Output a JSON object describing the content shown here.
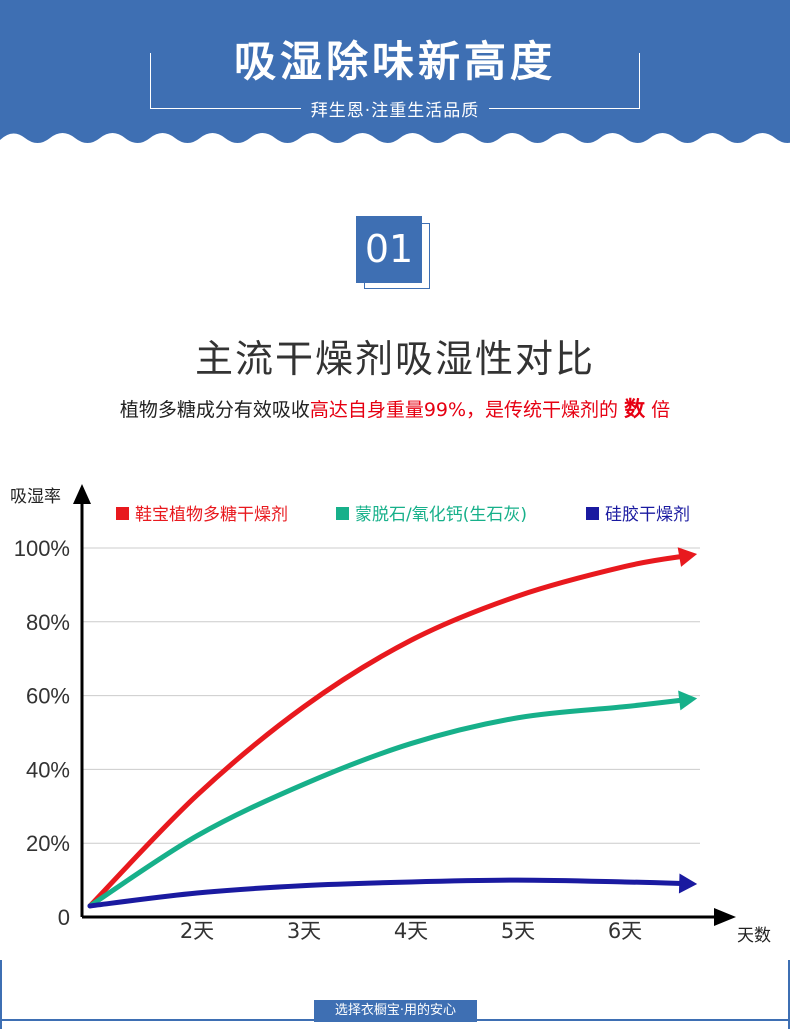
{
  "header": {
    "title": "吸湿除味新高度",
    "subtitle": "拜生恩·注重生活品质",
    "color": "#3e6fb3"
  },
  "section": {
    "number": "01",
    "title": "主流干燥剂吸湿性对比",
    "desc_black": "植物多糖成分有效吸收",
    "desc_red": "高达自身重量99%，是传统干燥剂的",
    "desc_bold": "数",
    "desc_tail": "倍"
  },
  "chart_data": {
    "type": "line",
    "ylabel": "吸湿率",
    "xlabel": "天数",
    "categories": [
      "2天",
      "3天",
      "4天",
      "5天",
      "6天"
    ],
    "ytick_labels": [
      "0",
      "20%",
      "40%",
      "60%",
      "80%",
      "100%"
    ],
    "ylim": [
      0,
      100
    ],
    "grid": true,
    "legend_position": "top",
    "series": [
      {
        "name": "鞋宝植物多糖干燥剂",
        "color": "#e8191e",
        "x": [
          1.0,
          2.0,
          3.0,
          4.0,
          5.0,
          6.0,
          6.6
        ],
        "values": [
          3,
          33,
          57,
          75,
          87,
          95,
          98
        ]
      },
      {
        "name": "蒙脱石/氧化钙(生石灰)",
        "color": "#17b08a",
        "x": [
          1.0,
          2.0,
          3.0,
          4.0,
          5.0,
          6.0,
          6.6
        ],
        "values": [
          3,
          22,
          36,
          47,
          54,
          57,
          59
        ]
      },
      {
        "name": "硅胶干燥剂",
        "color": "#1a1aa0",
        "x": [
          1.0,
          2.0,
          3.0,
          4.0,
          5.0,
          6.0,
          6.6
        ],
        "values": [
          3,
          6.5,
          8.5,
          9.5,
          10,
          9.5,
          9
        ]
      }
    ]
  },
  "footer": {
    "tag": "选择衣橱宝·用的安心"
  }
}
